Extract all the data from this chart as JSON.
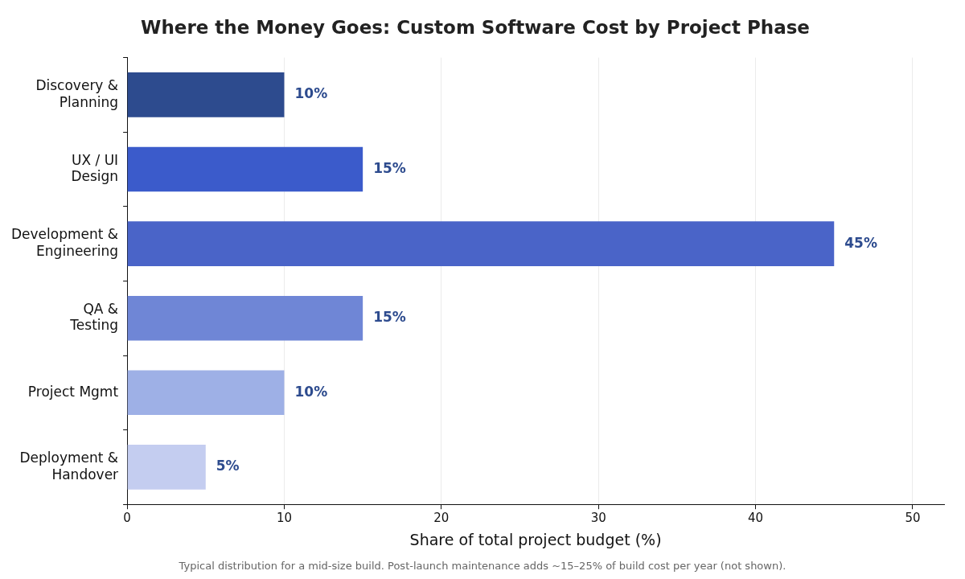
{
  "chart_data": {
    "type": "bar",
    "orientation": "horizontal",
    "title": "Where the Money Goes: Custom Software Cost by Project Phase",
    "categories": [
      "Discovery &\nPlanning",
      "UX / UI\nDesign",
      "Development &\nEngineering",
      "QA &\nTesting",
      "Project Mgmt",
      "Deployment &\nHandover"
    ],
    "values": [
      10,
      15,
      45,
      15,
      10,
      5
    ],
    "colors": [
      "#2d4b8e",
      "#3b5bcb",
      "#4a64c8",
      "#6f86d6",
      "#9eb0e6",
      "#c4cdf0"
    ],
    "value_labels": [
      "10%",
      "15%",
      "45%",
      "15%",
      "10%",
      "5%"
    ],
    "xlabel": "Share of total project budget (%)",
    "xlim": [
      0,
      52
    ],
    "xticks": [
      0,
      10,
      20,
      30,
      40,
      50
    ],
    "grid": "x",
    "legend": false,
    "annotations": [
      "Typical distribution for a mid-size build. Post-launch maintenance adds ~15–25% of build cost per year (not shown)."
    ]
  }
}
